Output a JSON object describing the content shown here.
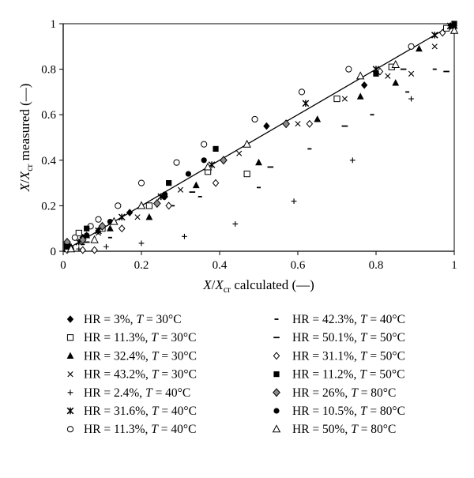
{
  "chart_data": {
    "type": "scatter",
    "title": "",
    "xlabel": "X/Xcr calculated (—)",
    "ylabel": "X/Xcr measured (—)",
    "xlabel_parts": [
      {
        "text": "X",
        "style": "italic"
      },
      {
        "text": "/",
        "style": "normal"
      },
      {
        "text": "X",
        "style": "italic"
      },
      {
        "text": "cr",
        "style": "sub"
      },
      {
        "text": " calculated (—)",
        "style": "normal"
      }
    ],
    "ylabel_parts": [
      {
        "text": "X",
        "style": "italic"
      },
      {
        "text": "/",
        "style": "normal"
      },
      {
        "text": "X",
        "style": "italic"
      },
      {
        "text": "cr",
        "style": "sub"
      },
      {
        "text": " measured (—)",
        "style": "normal"
      }
    ],
    "xlim": [
      0,
      1
    ],
    "ylim": [
      0,
      1
    ],
    "x_ticks": [
      0,
      0.2,
      0.4,
      0.6,
      0.8,
      1
    ],
    "y_ticks": [
      0,
      0.2,
      0.4,
      0.6,
      0.8,
      1
    ],
    "x_tick_labels": [
      "0",
      "0.2",
      "0.4",
      "0.6",
      "0.8",
      "1"
    ],
    "y_tick_labels": [
      "0",
      "0.2",
      "0.4",
      "0.6",
      "0.8",
      "1"
    ],
    "grid": false,
    "legend_position": "bottom, two columns",
    "reference_line": {
      "x": [
        0,
        1
      ],
      "y": [
        0,
        1
      ]
    },
    "series": [
      {
        "name": "HR = 3%, T = 30°C",
        "legend_parts": [
          "HR = 3%, ",
          "T",
          " = 30°C"
        ],
        "marker": "filled-diamond",
        "points": [
          [
            0.01,
            0.03
          ],
          [
            0.05,
            0.06
          ],
          [
            0.09,
            0.09
          ],
          [
            0.17,
            0.17
          ],
          [
            0.26,
            0.24
          ],
          [
            0.52,
            0.55
          ],
          [
            0.77,
            0.73
          ],
          [
            0.99,
            0.99
          ]
        ]
      },
      {
        "name": "HR = 11.3%, T = 30°C",
        "legend_parts": [
          "HR = 11.3%, ",
          "T",
          " = 30°C"
        ],
        "marker": "open-square",
        "points": [
          [
            0.01,
            0.02
          ],
          [
            0.04,
            0.08
          ],
          [
            0.1,
            0.1
          ],
          [
            0.22,
            0.2
          ],
          [
            0.37,
            0.35
          ],
          [
            0.47,
            0.34
          ],
          [
            0.7,
            0.67
          ],
          [
            0.84,
            0.81
          ],
          [
            0.98,
            0.98
          ]
        ]
      },
      {
        "name": "HR = 32.4%, T = 30°C",
        "legend_parts": [
          "HR = 32.4%, ",
          "T",
          " = 30°C"
        ],
        "marker": "filled-triangle",
        "points": [
          [
            0.02,
            0.02
          ],
          [
            0.06,
            0.07
          ],
          [
            0.12,
            0.1
          ],
          [
            0.22,
            0.15
          ],
          [
            0.34,
            0.29
          ],
          [
            0.5,
            0.39
          ],
          [
            0.65,
            0.58
          ],
          [
            0.76,
            0.68
          ],
          [
            0.85,
            0.74
          ],
          [
            0.91,
            0.89
          ],
          [
            1.0,
            0.99
          ]
        ]
      },
      {
        "name": "HR = 43.2%, T = 30°C",
        "legend_parts": [
          "HR = 43.2%, ",
          "T",
          " = 30°C"
        ],
        "marker": "cross",
        "points": [
          [
            0.02,
            0.01
          ],
          [
            0.05,
            0.05
          ],
          [
            0.09,
            0.08
          ],
          [
            0.19,
            0.15
          ],
          [
            0.3,
            0.27
          ],
          [
            0.45,
            0.43
          ],
          [
            0.6,
            0.56
          ],
          [
            0.72,
            0.67
          ],
          [
            0.83,
            0.77
          ],
          [
            0.89,
            0.78
          ],
          [
            0.95,
            0.9
          ]
        ]
      },
      {
        "name": "HR = 2.4%, T = 40°C",
        "legend_parts": [
          "HR = 2.4%, ",
          "T",
          " = 40°C"
        ],
        "marker": "plus",
        "points": [
          [
            0.01,
            0.005
          ],
          [
            0.04,
            0.01
          ],
          [
            0.11,
            0.02
          ],
          [
            0.2,
            0.035
          ],
          [
            0.31,
            0.065
          ],
          [
            0.44,
            0.12
          ],
          [
            0.59,
            0.22
          ],
          [
            0.74,
            0.4
          ],
          [
            0.89,
            0.67
          ],
          [
            0.99,
            0.99
          ]
        ]
      },
      {
        "name": "HR = 31.6%, T = 40°C",
        "legend_parts": [
          "HR = 31.6%, ",
          "T",
          " = 40°C"
        ],
        "marker": "star",
        "points": [
          [
            0.01,
            0.01
          ],
          [
            0.04,
            0.04
          ],
          [
            0.09,
            0.09
          ],
          [
            0.15,
            0.15
          ],
          [
            0.25,
            0.24
          ],
          [
            0.38,
            0.38
          ],
          [
            0.62,
            0.65
          ],
          [
            0.8,
            0.8
          ],
          [
            0.95,
            0.95
          ],
          [
            0.99,
            0.99
          ]
        ]
      },
      {
        "name": "HR = 11.3%, T = 40°C",
        "legend_parts": [
          "HR = 11.3%, ",
          "T",
          " = 40°C"
        ],
        "marker": "open-circle",
        "points": [
          [
            0.01,
            0.03
          ],
          [
            0.03,
            0.06
          ],
          [
            0.07,
            0.11
          ],
          [
            0.09,
            0.14
          ],
          [
            0.14,
            0.2
          ],
          [
            0.2,
            0.3
          ],
          [
            0.29,
            0.39
          ],
          [
            0.36,
            0.47
          ],
          [
            0.49,
            0.58
          ],
          [
            0.61,
            0.7
          ],
          [
            0.73,
            0.8
          ],
          [
            0.89,
            0.9
          ]
        ]
      },
      {
        "name": "HR = 42.3%, T = 40°C",
        "legend_parts": [
          "HR = 42.3%, ",
          "T",
          " = 40°C"
        ],
        "marker": "short-dash",
        "points": [
          [
            0.01,
            0.005
          ],
          [
            0.05,
            0.03
          ],
          [
            0.12,
            0.06
          ],
          [
            0.28,
            0.2
          ],
          [
            0.35,
            0.24
          ],
          [
            0.5,
            0.28
          ],
          [
            0.63,
            0.45
          ],
          [
            0.79,
            0.6
          ],
          [
            0.88,
            0.7
          ],
          [
            0.95,
            0.8
          ]
        ]
      },
      {
        "name": "HR = 50.1%, T = 50°C",
        "legend_parts": [
          "HR = 50.1%, ",
          "T",
          " = 50°C"
        ],
        "marker": "long-dash",
        "points": [
          [
            0.01,
            0.005
          ],
          [
            0.06,
            0.04
          ],
          [
            0.15,
            0.1
          ],
          [
            0.33,
            0.26
          ],
          [
            0.53,
            0.37
          ],
          [
            0.72,
            0.55
          ],
          [
            0.87,
            0.8
          ],
          [
            0.98,
            0.79
          ]
        ]
      },
      {
        "name": "HR = 31.1%, T = 50°C",
        "legend_parts": [
          "HR = 31.1%, ",
          "T",
          " = 50°C"
        ],
        "marker": "open-diamond",
        "points": [
          [
            0.01,
            0.005
          ],
          [
            0.05,
            0.005
          ],
          [
            0.08,
            0.005
          ],
          [
            0.15,
            0.1
          ],
          [
            0.27,
            0.2
          ],
          [
            0.39,
            0.3
          ],
          [
            0.63,
            0.56
          ],
          [
            0.81,
            0.79
          ],
          [
            0.97,
            0.96
          ]
        ]
      },
      {
        "name": "HR = 11.2%, T = 50°C",
        "legend_parts": [
          "HR = 11.2%, ",
          "T",
          " = 50°C"
        ],
        "marker": "filled-square",
        "points": [
          [
            0.01,
            0.02
          ],
          [
            0.06,
            0.1
          ],
          [
            0.27,
            0.3
          ],
          [
            0.39,
            0.45
          ],
          [
            0.8,
            0.78
          ],
          [
            1.0,
            1.0
          ]
        ]
      },
      {
        "name": "HR = 26%, T = 80°C",
        "legend_parts": [
          "HR = 26%, ",
          "T",
          " = 80°C"
        ],
        "marker": "gray-diamond",
        "points": [
          [
            0.01,
            0.04
          ],
          [
            0.05,
            0.05
          ],
          [
            0.1,
            0.11
          ],
          [
            0.24,
            0.21
          ],
          [
            0.41,
            0.4
          ],
          [
            0.57,
            0.56
          ]
        ]
      },
      {
        "name": "HR = 10.5%, T = 80°C",
        "legend_parts": [
          "HR = 10.5%, ",
          "T",
          " = 80°C"
        ],
        "marker": "filled-circle",
        "points": [
          [
            0.01,
            0.02
          ],
          [
            0.06,
            0.07
          ],
          [
            0.12,
            0.13
          ],
          [
            0.26,
            0.25
          ],
          [
            0.32,
            0.34
          ],
          [
            0.36,
            0.4
          ]
        ]
      },
      {
        "name": "HR = 50%, T = 80°C",
        "legend_parts": [
          "HR = 50%, ",
          "T",
          " = 80°C"
        ],
        "marker": "open-triangle",
        "points": [
          [
            0.02,
            0.01
          ],
          [
            0.08,
            0.05
          ],
          [
            0.13,
            0.13
          ],
          [
            0.2,
            0.2
          ],
          [
            0.37,
            0.37
          ],
          [
            0.47,
            0.47
          ],
          [
            0.76,
            0.77
          ],
          [
            0.85,
            0.82
          ],
          [
            1.0,
            0.97
          ]
        ]
      }
    ]
  }
}
